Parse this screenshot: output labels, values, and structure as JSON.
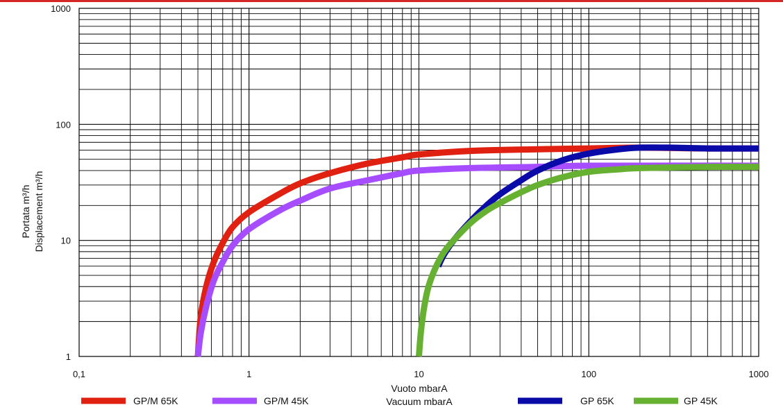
{
  "chart_data": {
    "type": "line",
    "title": "",
    "xlabel_lines": [
      "Vuoto mbarA",
      "Vacuum mbarA"
    ],
    "ylabel_lines": [
      "Portata m³/h",
      "Displacement m³/h"
    ],
    "x_scale": "log",
    "y_scale": "log",
    "xlim": [
      0.1,
      1000
    ],
    "ylim": [
      1,
      1000
    ],
    "x_ticks": [
      0.1,
      1,
      10,
      100,
      1000
    ],
    "x_tick_labels": [
      "0,1",
      "1",
      "10",
      "100",
      "1000"
    ],
    "y_ticks": [
      1,
      10,
      100,
      1000
    ],
    "y_tick_labels": [
      "1",
      "10",
      "100",
      "1000"
    ],
    "grid": true,
    "legend_position": "bottom",
    "series": [
      {
        "name": "GP/M 65K",
        "color": "#e02010",
        "points": [
          [
            0.5,
            1
          ],
          [
            0.52,
            2.2
          ],
          [
            0.56,
            4
          ],
          [
            0.62,
            6.5
          ],
          [
            0.7,
            9.5
          ],
          [
            0.8,
            13
          ],
          [
            1,
            17.5
          ],
          [
            1.5,
            25
          ],
          [
            2,
            31
          ],
          [
            3,
            38
          ],
          [
            5,
            46
          ],
          [
            8,
            52
          ],
          [
            10,
            55
          ],
          [
            20,
            59
          ],
          [
            50,
            61
          ],
          [
            100,
            62
          ],
          [
            200,
            63
          ],
          [
            500,
            62
          ],
          [
            1000,
            62
          ]
        ]
      },
      {
        "name": "GP/M 45K",
        "color": "#a64dff",
        "points": [
          [
            0.5,
            1
          ],
          [
            0.52,
            1.6
          ],
          [
            0.56,
            2.7
          ],
          [
            0.62,
            4.5
          ],
          [
            0.7,
            6.5
          ],
          [
            0.8,
            9
          ],
          [
            1,
            12.5
          ],
          [
            1.5,
            18
          ],
          [
            2,
            22
          ],
          [
            3,
            28
          ],
          [
            5,
            33
          ],
          [
            8,
            38
          ],
          [
            10,
            40
          ],
          [
            20,
            42
          ],
          [
            50,
            43
          ],
          [
            100,
            44
          ],
          [
            1000,
            44
          ]
        ]
      },
      {
        "name": "GP 65K",
        "color": "#0a0aa8",
        "points": [
          [
            13,
            6
          ],
          [
            14,
            7.5
          ],
          [
            16,
            10
          ],
          [
            20,
            14.5
          ],
          [
            25,
            20
          ],
          [
            30,
            25
          ],
          [
            40,
            33
          ],
          [
            50,
            40
          ],
          [
            70,
            49
          ],
          [
            100,
            56
          ],
          [
            150,
            61
          ],
          [
            200,
            63
          ],
          [
            300,
            63
          ],
          [
            500,
            62
          ],
          [
            1000,
            62
          ]
        ]
      },
      {
        "name": "GP 45K",
        "color": "#66b032",
        "points": [
          [
            10,
            1
          ],
          [
            10.3,
            1.7
          ],
          [
            10.8,
            2.8
          ],
          [
            11.5,
            4.2
          ],
          [
            13,
            6.5
          ],
          [
            15,
            9
          ],
          [
            20,
            14
          ],
          [
            25,
            18
          ],
          [
            30,
            21
          ],
          [
            40,
            26
          ],
          [
            50,
            30
          ],
          [
            70,
            35
          ],
          [
            100,
            39
          ],
          [
            150,
            41
          ],
          [
            200,
            42
          ],
          [
            500,
            43
          ],
          [
            1000,
            43
          ]
        ]
      }
    ]
  }
}
